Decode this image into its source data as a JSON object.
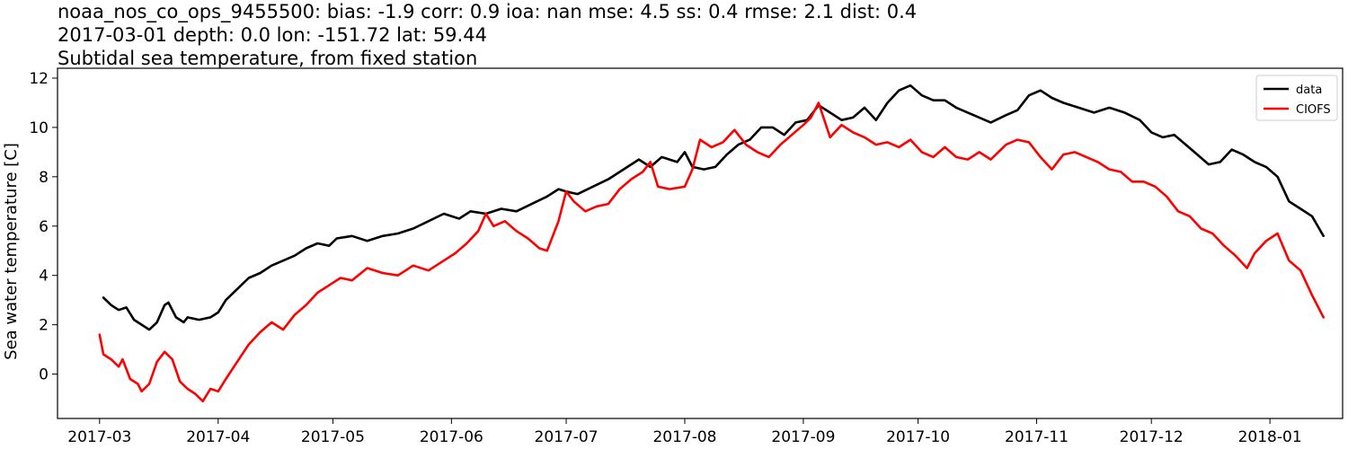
{
  "title": {
    "line1": "noaa_nos_co_ops_9455500: bias: -1.9  corr: 0.9  ioa: nan  mse: 4.5  ss: 0.4  rmse: 2.1  dist: 0.4",
    "line2": "2017-03-01 depth: 0.0 lon: -151.72 lat: 59.44",
    "line3": "Subtidal sea temperature, from fixed station"
  },
  "chart_data": {
    "type": "line",
    "ylabel": "Sea water temperature [C]",
    "xlabel": "",
    "xlim": [
      "2017-02-18",
      "2018-01-20"
    ],
    "ylim": [
      -1.8,
      12.4
    ],
    "xticks": [
      "2017-03-01",
      "2017-04-01",
      "2017-05-01",
      "2017-06-01",
      "2017-07-01",
      "2017-08-01",
      "2017-09-01",
      "2017-10-01",
      "2017-11-01",
      "2017-12-01",
      "2018-01-01"
    ],
    "xtick_labels": [
      "2017-03",
      "2017-04",
      "2017-05",
      "2017-06",
      "2017-07",
      "2017-08",
      "2017-09",
      "2017-10",
      "2017-11",
      "2017-12",
      "2018-01"
    ],
    "yticks": [
      0,
      2,
      4,
      6,
      8,
      10,
      12
    ],
    "ytick_labels": [
      "0",
      "2",
      "4",
      "6",
      "8",
      "10",
      "12"
    ],
    "grid": false,
    "legend_position": "top-right",
    "series": [
      {
        "name": "data",
        "color": "#000000",
        "points": [
          [
            "2017-03-02",
            3.1
          ],
          [
            "2017-03-04",
            2.8
          ],
          [
            "2017-03-06",
            2.6
          ],
          [
            "2017-03-08",
            2.7
          ],
          [
            "2017-03-10",
            2.2
          ],
          [
            "2017-03-13",
            1.9
          ],
          [
            "2017-03-14",
            1.8
          ],
          [
            "2017-03-16",
            2.1
          ],
          [
            "2017-03-18",
            2.8
          ],
          [
            "2017-03-19",
            2.9
          ],
          [
            "2017-03-21",
            2.3
          ],
          [
            "2017-03-23",
            2.1
          ],
          [
            "2017-03-24",
            2.3
          ],
          [
            "2017-03-27",
            2.2
          ],
          [
            "2017-03-30",
            2.3
          ],
          [
            "2017-04-01",
            2.5
          ],
          [
            "2017-04-03",
            3.0
          ],
          [
            "2017-04-05",
            3.3
          ],
          [
            "2017-04-07",
            3.6
          ],
          [
            "2017-04-09",
            3.9
          ],
          [
            "2017-04-12",
            4.1
          ],
          [
            "2017-04-15",
            4.4
          ],
          [
            "2017-04-18",
            4.6
          ],
          [
            "2017-04-21",
            4.8
          ],
          [
            "2017-04-24",
            5.1
          ],
          [
            "2017-04-27",
            5.3
          ],
          [
            "2017-04-30",
            5.2
          ],
          [
            "2017-05-02",
            5.5
          ],
          [
            "2017-05-06",
            5.6
          ],
          [
            "2017-05-10",
            5.4
          ],
          [
            "2017-05-14",
            5.6
          ],
          [
            "2017-05-18",
            5.7
          ],
          [
            "2017-05-22",
            5.9
          ],
          [
            "2017-05-26",
            6.2
          ],
          [
            "2017-05-30",
            6.5
          ],
          [
            "2017-06-03",
            6.3
          ],
          [
            "2017-06-06",
            6.6
          ],
          [
            "2017-06-10",
            6.5
          ],
          [
            "2017-06-14",
            6.7
          ],
          [
            "2017-06-18",
            6.6
          ],
          [
            "2017-06-22",
            6.9
          ],
          [
            "2017-06-26",
            7.2
          ],
          [
            "2017-06-29",
            7.5
          ],
          [
            "2017-07-01",
            7.4
          ],
          [
            "2017-07-04",
            7.3
          ],
          [
            "2017-07-08",
            7.6
          ],
          [
            "2017-07-12",
            7.9
          ],
          [
            "2017-07-16",
            8.3
          ],
          [
            "2017-07-20",
            8.7
          ],
          [
            "2017-07-23",
            8.4
          ],
          [
            "2017-07-26",
            8.8
          ],
          [
            "2017-07-30",
            8.6
          ],
          [
            "2017-08-01",
            9.0
          ],
          [
            "2017-08-03",
            8.4
          ],
          [
            "2017-08-06",
            8.3
          ],
          [
            "2017-08-09",
            8.4
          ],
          [
            "2017-08-12",
            8.9
          ],
          [
            "2017-08-15",
            9.3
          ],
          [
            "2017-08-18",
            9.5
          ],
          [
            "2017-08-21",
            10.0
          ],
          [
            "2017-08-24",
            10.0
          ],
          [
            "2017-08-27",
            9.7
          ],
          [
            "2017-08-30",
            10.2
          ],
          [
            "2017-09-02",
            10.3
          ],
          [
            "2017-09-05",
            10.9
          ],
          [
            "2017-09-08",
            10.6
          ],
          [
            "2017-09-11",
            10.3
          ],
          [
            "2017-09-14",
            10.4
          ],
          [
            "2017-09-17",
            10.8
          ],
          [
            "2017-09-20",
            10.3
          ],
          [
            "2017-09-23",
            11.0
          ],
          [
            "2017-09-26",
            11.5
          ],
          [
            "2017-09-29",
            11.7
          ],
          [
            "2017-10-02",
            11.3
          ],
          [
            "2017-10-05",
            11.1
          ],
          [
            "2017-10-08",
            11.1
          ],
          [
            "2017-10-11",
            10.8
          ],
          [
            "2017-10-14",
            10.6
          ],
          [
            "2017-10-17",
            10.4
          ],
          [
            "2017-10-20",
            10.2
          ],
          [
            "2017-10-24",
            10.5
          ],
          [
            "2017-10-27",
            10.7
          ],
          [
            "2017-10-30",
            11.3
          ],
          [
            "2017-11-02",
            11.5
          ],
          [
            "2017-11-05",
            11.2
          ],
          [
            "2017-11-08",
            11.0
          ],
          [
            "2017-11-12",
            10.8
          ],
          [
            "2017-11-16",
            10.6
          ],
          [
            "2017-11-20",
            10.8
          ],
          [
            "2017-11-24",
            10.6
          ],
          [
            "2017-11-28",
            10.3
          ],
          [
            "2017-12-01",
            9.8
          ],
          [
            "2017-12-04",
            9.6
          ],
          [
            "2017-12-07",
            9.7
          ],
          [
            "2017-12-10",
            9.3
          ],
          [
            "2017-12-13",
            8.9
          ],
          [
            "2017-12-16",
            8.5
          ],
          [
            "2017-12-19",
            8.6
          ],
          [
            "2017-12-22",
            9.1
          ],
          [
            "2017-12-25",
            8.9
          ],
          [
            "2017-12-28",
            8.6
          ],
          [
            "2017-12-31",
            8.4
          ],
          [
            "2018-01-03",
            8.0
          ],
          [
            "2018-01-06",
            7.0
          ],
          [
            "2018-01-09",
            6.7
          ],
          [
            "2018-01-12",
            6.4
          ],
          [
            "2018-01-15",
            5.6
          ]
        ]
      },
      {
        "name": "CIOFS",
        "color": "#ff0000",
        "points": [
          [
            "2017-03-01",
            1.6
          ],
          [
            "2017-03-02",
            0.8
          ],
          [
            "2017-03-04",
            0.6
          ],
          [
            "2017-03-06",
            0.3
          ],
          [
            "2017-03-07",
            0.6
          ],
          [
            "2017-03-09",
            -0.2
          ],
          [
            "2017-03-11",
            -0.4
          ],
          [
            "2017-03-12",
            -0.7
          ],
          [
            "2017-03-14",
            -0.4
          ],
          [
            "2017-03-16",
            0.5
          ],
          [
            "2017-03-18",
            0.9
          ],
          [
            "2017-03-20",
            0.6
          ],
          [
            "2017-03-22",
            -0.3
          ],
          [
            "2017-03-24",
            -0.6
          ],
          [
            "2017-03-26",
            -0.8
          ],
          [
            "2017-03-28",
            -1.1
          ],
          [
            "2017-03-30",
            -0.6
          ],
          [
            "2017-04-01",
            -0.7
          ],
          [
            "2017-04-03",
            -0.2
          ],
          [
            "2017-04-06",
            0.5
          ],
          [
            "2017-04-09",
            1.2
          ],
          [
            "2017-04-12",
            1.7
          ],
          [
            "2017-04-15",
            2.1
          ],
          [
            "2017-04-18",
            1.8
          ],
          [
            "2017-04-21",
            2.4
          ],
          [
            "2017-04-24",
            2.8
          ],
          [
            "2017-04-27",
            3.3
          ],
          [
            "2017-04-30",
            3.6
          ],
          [
            "2017-05-03",
            3.9
          ],
          [
            "2017-05-06",
            3.8
          ],
          [
            "2017-05-10",
            4.3
          ],
          [
            "2017-05-14",
            4.1
          ],
          [
            "2017-05-18",
            4.0
          ],
          [
            "2017-05-22",
            4.4
          ],
          [
            "2017-05-26",
            4.2
          ],
          [
            "2017-05-30",
            4.6
          ],
          [
            "2017-06-02",
            4.9
          ],
          [
            "2017-06-05",
            5.3
          ],
          [
            "2017-06-08",
            5.8
          ],
          [
            "2017-06-10",
            6.5
          ],
          [
            "2017-06-12",
            6.0
          ],
          [
            "2017-06-15",
            6.2
          ],
          [
            "2017-06-18",
            5.8
          ],
          [
            "2017-06-21",
            5.5
          ],
          [
            "2017-06-24",
            5.1
          ],
          [
            "2017-06-26",
            5.0
          ],
          [
            "2017-06-29",
            6.2
          ],
          [
            "2017-07-01",
            7.4
          ],
          [
            "2017-07-03",
            7.0
          ],
          [
            "2017-07-06",
            6.6
          ],
          [
            "2017-07-09",
            6.8
          ],
          [
            "2017-07-12",
            6.9
          ],
          [
            "2017-07-15",
            7.5
          ],
          [
            "2017-07-18",
            7.9
          ],
          [
            "2017-07-21",
            8.2
          ],
          [
            "2017-07-23",
            8.6
          ],
          [
            "2017-07-25",
            7.6
          ],
          [
            "2017-07-28",
            7.5
          ],
          [
            "2017-08-01",
            7.6
          ],
          [
            "2017-08-03",
            8.3
          ],
          [
            "2017-08-05",
            9.5
          ],
          [
            "2017-08-08",
            9.2
          ],
          [
            "2017-08-11",
            9.4
          ],
          [
            "2017-08-14",
            9.9
          ],
          [
            "2017-08-17",
            9.3
          ],
          [
            "2017-08-20",
            9.0
          ],
          [
            "2017-08-23",
            8.8
          ],
          [
            "2017-08-26",
            9.3
          ],
          [
            "2017-08-29",
            9.7
          ],
          [
            "2017-09-01",
            10.1
          ],
          [
            "2017-09-03",
            10.4
          ],
          [
            "2017-09-05",
            11.0
          ],
          [
            "2017-09-08",
            9.6
          ],
          [
            "2017-09-11",
            10.1
          ],
          [
            "2017-09-14",
            9.8
          ],
          [
            "2017-09-17",
            9.6
          ],
          [
            "2017-09-20",
            9.3
          ],
          [
            "2017-09-23",
            9.4
          ],
          [
            "2017-09-26",
            9.2
          ],
          [
            "2017-09-29",
            9.5
          ],
          [
            "2017-10-02",
            9.0
          ],
          [
            "2017-10-05",
            8.8
          ],
          [
            "2017-10-08",
            9.2
          ],
          [
            "2017-10-11",
            8.8
          ],
          [
            "2017-10-14",
            8.7
          ],
          [
            "2017-10-17",
            9.0
          ],
          [
            "2017-10-20",
            8.7
          ],
          [
            "2017-10-24",
            9.3
          ],
          [
            "2017-10-27",
            9.5
          ],
          [
            "2017-10-30",
            9.4
          ],
          [
            "2017-11-02",
            8.8
          ],
          [
            "2017-11-05",
            8.3
          ],
          [
            "2017-11-08",
            8.9
          ],
          [
            "2017-11-11",
            9.0
          ],
          [
            "2017-11-14",
            8.8
          ],
          [
            "2017-11-17",
            8.6
          ],
          [
            "2017-11-20",
            8.3
          ],
          [
            "2017-11-23",
            8.2
          ],
          [
            "2017-11-26",
            7.8
          ],
          [
            "2017-11-29",
            7.8
          ],
          [
            "2017-12-02",
            7.6
          ],
          [
            "2017-12-05",
            7.2
          ],
          [
            "2017-12-08",
            6.6
          ],
          [
            "2017-12-11",
            6.4
          ],
          [
            "2017-12-14",
            5.9
          ],
          [
            "2017-12-17",
            5.7
          ],
          [
            "2017-12-20",
            5.2
          ],
          [
            "2017-12-23",
            4.8
          ],
          [
            "2017-12-26",
            4.3
          ],
          [
            "2017-12-28",
            4.9
          ],
          [
            "2017-12-31",
            5.4
          ],
          [
            "2018-01-03",
            5.7
          ],
          [
            "2018-01-06",
            4.6
          ],
          [
            "2018-01-09",
            4.2
          ],
          [
            "2018-01-12",
            3.2
          ],
          [
            "2018-01-15",
            2.3
          ]
        ]
      }
    ]
  }
}
